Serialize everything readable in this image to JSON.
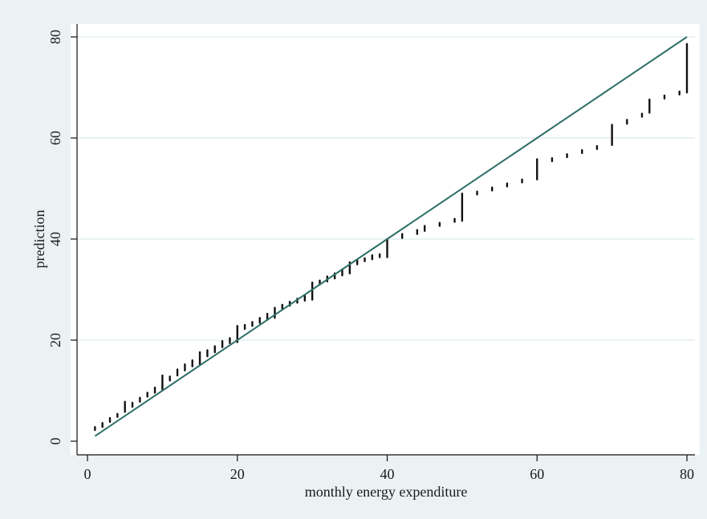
{
  "chart_data": {
    "type": "scatter",
    "xlabel": "monthly energy expenditure",
    "ylabel": "prediction",
    "xlim": [
      0,
      80
    ],
    "ylim": [
      0,
      80
    ],
    "xticks": [
      0,
      20,
      40,
      60,
      80
    ],
    "yticks": [
      0,
      20,
      40,
      60,
      80
    ],
    "grid": "horizontal",
    "legend": "none",
    "colors": {
      "background": "#eaf2f3",
      "plot_background": "#ffffff",
      "grid": "#e4eef0",
      "points": "#111111",
      "reference_line": "#2e6e66"
    },
    "series": [
      {
        "kind": "line",
        "x": [
          1,
          80
        ],
        "y": [
          1,
          80
        ]
      },
      {
        "kind": "points",
        "x": [
          1,
          2,
          3,
          4,
          5,
          6,
          7,
          8,
          9,
          10,
          11,
          12,
          13,
          14,
          15,
          16,
          17,
          18,
          19,
          20,
          21,
          22,
          23,
          24,
          25,
          26,
          27,
          28,
          29,
          30,
          31,
          32,
          33,
          34,
          35,
          36,
          37,
          38,
          39,
          40,
          42,
          44,
          45,
          47,
          49,
          50,
          52,
          54,
          56,
          58,
          60,
          62,
          64,
          66,
          68,
          70,
          72,
          74,
          75,
          77,
          79,
          80
        ],
        "y_min": [
          2.2,
          2.8,
          3.8,
          4.8,
          5.8,
          6.8,
          7.8,
          8.8,
          9.6,
          10.2,
          12.0,
          13.0,
          14.0,
          14.8,
          15.2,
          16.8,
          17.6,
          18.6,
          19.4,
          19.6,
          22.2,
          22.8,
          23.4,
          24.0,
          24.4,
          26.2,
          26.8,
          27.4,
          27.8,
          28.0,
          31.0,
          31.6,
          32.2,
          32.8,
          33.2,
          35.0,
          35.6,
          36.0,
          36.4,
          36.4,
          40.2,
          41.0,
          41.6,
          42.6,
          43.4,
          43.6,
          48.8,
          49.6,
          50.4,
          51.2,
          51.8,
          55.4,
          56.2,
          57.0,
          57.8,
          58.6,
          62.8,
          64.2,
          65.0,
          67.8,
          68.6,
          69.0
        ],
        "y_max": [
          2.8,
          3.6,
          4.6,
          5.4,
          7.8,
          7.6,
          8.6,
          9.6,
          10.6,
          13.0,
          12.8,
          14.2,
          15.2,
          16.0,
          17.6,
          18.0,
          18.8,
          19.8,
          20.4,
          22.8,
          23.0,
          23.6,
          24.4,
          25.2,
          26.4,
          27.0,
          27.6,
          28.2,
          28.8,
          31.4,
          31.8,
          32.6,
          33.2,
          34.0,
          35.4,
          35.8,
          36.2,
          36.8,
          37.0,
          40.0,
          41.0,
          41.8,
          42.6,
          43.2,
          44.0,
          49.0,
          49.4,
          50.2,
          51.0,
          51.8,
          55.8,
          56.0,
          56.8,
          57.6,
          58.4,
          62.6,
          63.6,
          64.8,
          67.6,
          68.4,
          69.2,
          78.6
        ]
      }
    ]
  }
}
